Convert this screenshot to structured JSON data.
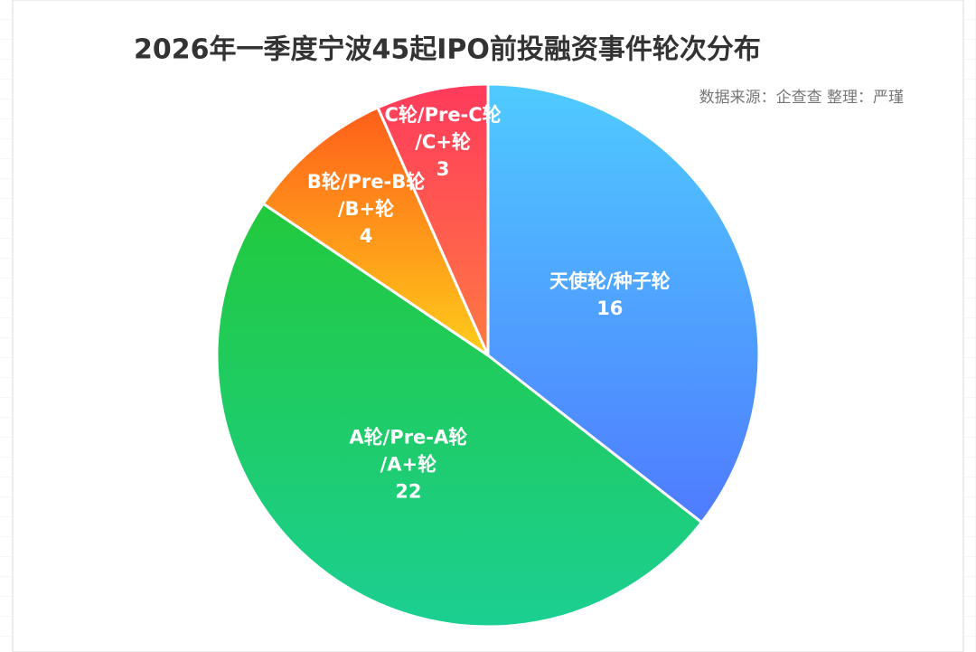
{
  "chart_data": {
    "type": "pie",
    "title": "2026年一季度宁波45起IPO前投融资事件轮次分布",
    "subtitle": "数据来源：企查查 整理：严瑾",
    "categories": [
      [
        "天使轮/种子轮"
      ],
      [
        "A轮/Pre-A轮",
        "/A+轮"
      ],
      [
        "B轮/Pre-B轮",
        "/B+轮"
      ],
      [
        "C轮/Pre-C轮",
        "/C+轮"
      ]
    ],
    "values": [
      16,
      22,
      4,
      3
    ],
    "colors": [
      [
        "#4fcbff",
        "#4f7bff"
      ],
      [
        "#22c93c",
        "#1bcf92"
      ],
      [
        "#ff5e1a",
        "#ffcc1a"
      ],
      [
        "#ff3a5c",
        "#ff7a42"
      ]
    ]
  }
}
